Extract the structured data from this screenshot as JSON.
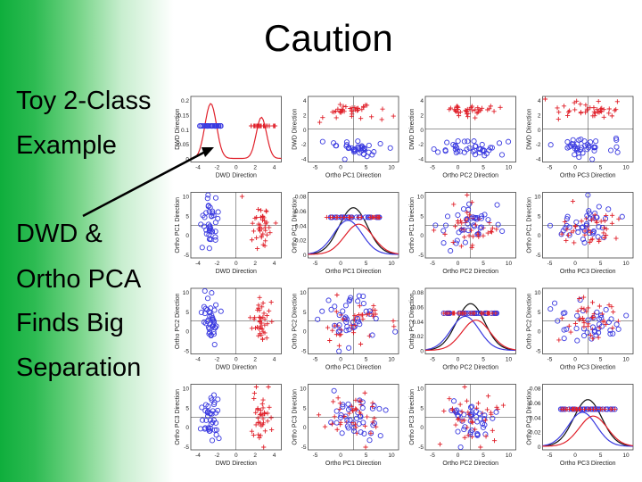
{
  "slide": {
    "title": "Caution",
    "side_lines": [
      "Toy 2-Class",
      "Example",
      "DWD &",
      "Ortho PCA",
      "Finds Big",
      "Separation"
    ]
  },
  "colors": {
    "class1": "#3a3ae0",
    "class2": "#e0202a",
    "combined": "#111111",
    "background_bar": "#1aaf45"
  },
  "matrix": {
    "axis_labels": [
      "DWD Direction",
      "Ortho PC1 Direction",
      "Ortho PC2 Direction",
      "Ortho PC3 Direction"
    ],
    "diag_ticks": [
      [
        "0.2",
        "0.15",
        "0.1",
        "0.05",
        "0"
      ],
      [
        "0.08",
        "0.06",
        "0.04",
        "0.02",
        "0"
      ],
      [
        "0.08",
        "0.06",
        "0.04",
        "0.02",
        "0"
      ],
      [
        "0.08",
        "0.06",
        "0.04",
        "0.02",
        "0"
      ]
    ],
    "dwd_x_ticks": [
      "-4",
      "-2",
      "0",
      "2",
      "4"
    ],
    "pc_x_ticks": [
      "-5",
      "0",
      "5",
      "10"
    ],
    "row_y_ticks": [
      [
        "4",
        "2",
        "0",
        "-2",
        "-4"
      ],
      [
        "10",
        "5",
        "0",
        "-5"
      ],
      [
        "10",
        "5",
        "0",
        "-5"
      ],
      [
        "10",
        "5",
        "0",
        "-5"
      ]
    ]
  }
}
